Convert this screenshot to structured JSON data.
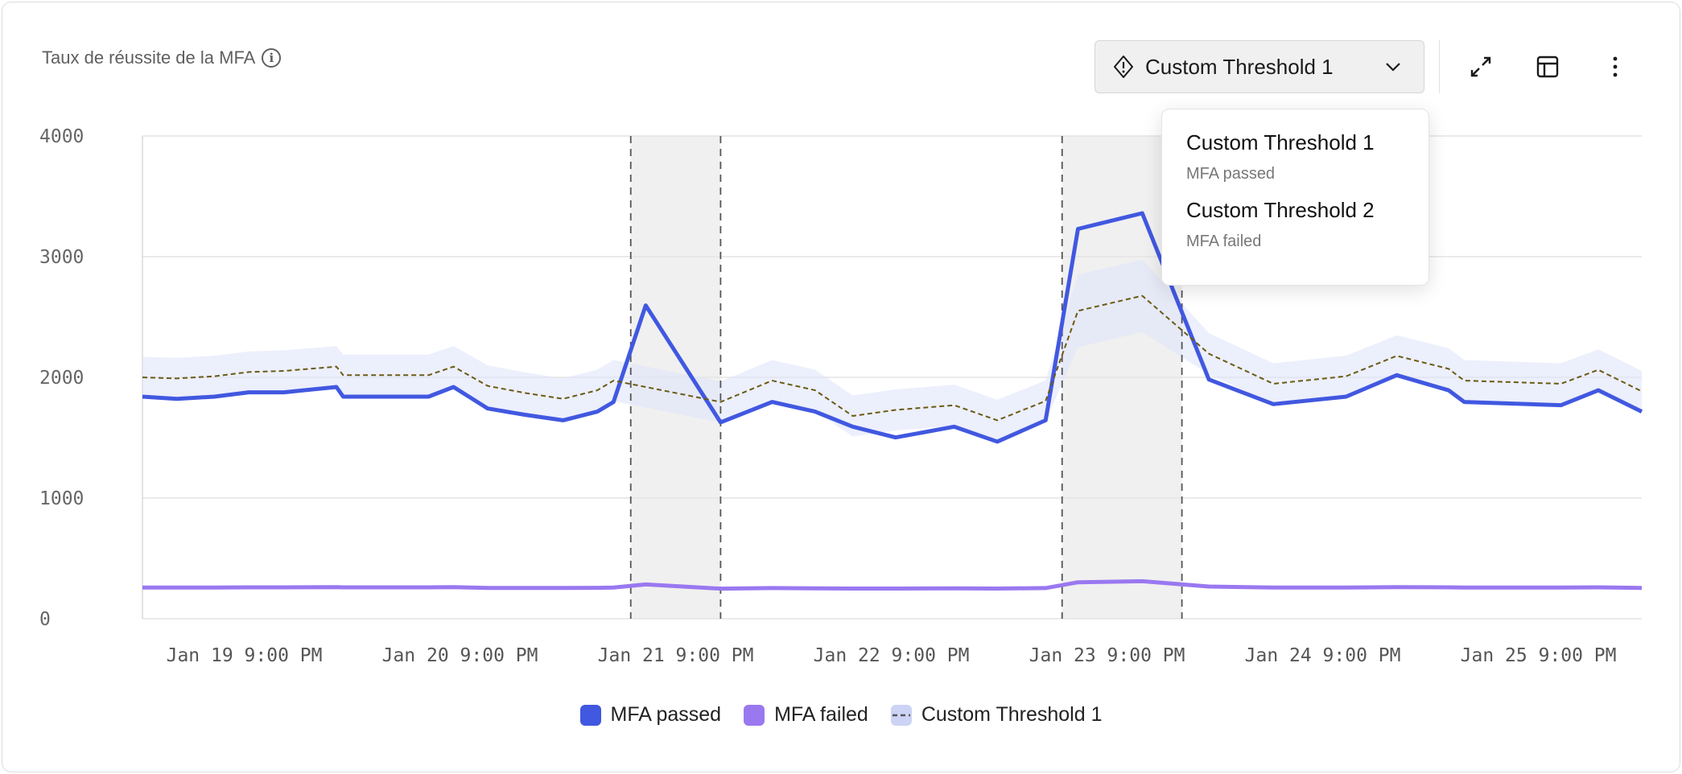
{
  "header": {
    "title": "Taux de réussite de la MFA",
    "info_icon": "info-icon",
    "threshold_select": "Custom Threshold 1",
    "icons": [
      "warning-diamond-icon",
      "chevron-down-icon",
      "expand-icon",
      "table-icon",
      "more-vertical-icon"
    ]
  },
  "dropdown": {
    "items": [
      {
        "label": "Custom Threshold 1",
        "sub": "MFA passed"
      },
      {
        "label": "Custom Threshold 2",
        "sub": "MFA failed"
      }
    ]
  },
  "legend": {
    "items": [
      {
        "label": "MFA passed",
        "color": "#4158e0"
      },
      {
        "label": "MFA failed",
        "color": "#9a78f0"
      },
      {
        "label": "Custom Threshold 1",
        "color": "#ccd3f5"
      }
    ]
  },
  "chart_data": {
    "type": "line",
    "title": "Taux de réussite de la MFA",
    "ylim": [
      0,
      4000
    ],
    "xlim": [
      "Jan 19 09:40",
      "Jan 26 08:30"
    ],
    "grid": true,
    "legend_position": "bottom",
    "y_ticks": [
      "4000",
      "3000",
      "2000",
      "1000",
      "0"
    ],
    "x_ticks": [
      {
        "at": "Jan 19 21:00",
        "label": "Jan 19 9:00 PM"
      },
      {
        "at": "Jan 20 21:00",
        "label": "Jan 20 9:00 PM"
      },
      {
        "at": "Jan 21 21:00",
        "label": "Jan 21 9:00 PM"
      },
      {
        "at": "Jan 22 21:00",
        "label": "Jan 22 9:00 PM"
      },
      {
        "at": "Jan 23 21:00",
        "label": "Jan 23 9:00 PM"
      },
      {
        "at": "Jan 24 21:00",
        "label": "Jan 24 9:00 PM"
      },
      {
        "at": "Jan 25 21:00",
        "label": "Jan 25 9:00 PM"
      }
    ],
    "highlight_ranges": [
      [
        "Jan 21 16:00",
        "Jan 22 02:00"
      ],
      [
        "Jan 23 16:00",
        "Jan 24 05:20"
      ]
    ],
    "x": [
      "Jan 19 09:40",
      "Jan 19 13:30",
      "Jan 19 17:40",
      "Jan 19 21:30",
      "Jan 20 01:25",
      "Jan 20 07:15",
      "Jan 20 08:00",
      "Jan 20 17:30",
      "Jan 20 20:17",
      "Jan 21 00:05",
      "Jan 21 04:17",
      "Jan 21 08:28",
      "Jan 21 12:17",
      "Jan 21 14:05",
      "Jan 21 17:40",
      "Jan 22 02:00",
      "Jan 22 07:44",
      "Jan 22 12:31",
      "Jan 22 16:42",
      "Jan 22 21:28",
      "Jan 23 04:00",
      "Jan 23 08:47",
      "Jan 23 14:10",
      "Jan 23 17:46",
      "Jan 24 00:55",
      "Jan 24 08:20",
      "Jan 24 15:30",
      "Jan 24 23:36",
      "Jan 25 05:14",
      "Jan 25 11:00",
      "Jan 25 12:45",
      "Jan 25 23:30",
      "Jan 26 03:40",
      "Jan 26 08:30"
    ],
    "series": [
      {
        "name": "MFA passed",
        "color": "#4158e0",
        "values": [
          1840,
          1822,
          1840,
          1876,
          1876,
          1920,
          1840,
          1840,
          1920,
          1742,
          1689,
          1644,
          1716,
          1796,
          2596,
          1627,
          1796,
          1716,
          1591,
          1502,
          1591,
          1467,
          1644,
          3230,
          3360,
          1982,
          1778,
          1840,
          2018,
          1893,
          1796,
          1769,
          1893,
          1716
        ]
      },
      {
        "name": "MFA failed",
        "color": "#9a78f0",
        "values": [
          258,
          258,
          258,
          260,
          260,
          262,
          260,
          260,
          262,
          255,
          255,
          255,
          256,
          258,
          284,
          249,
          254,
          252,
          250,
          250,
          252,
          250,
          254,
          302,
          311,
          267,
          258,
          258,
          262,
          260,
          258,
          258,
          260,
          255
        ]
      },
      {
        "name": "Custom Threshold 1",
        "color": "#6b5a12",
        "style": "dashed",
        "values": [
          2000,
          1991,
          2009,
          2044,
          2053,
          2089,
          2018,
          2018,
          2089,
          1929,
          1870,
          1822,
          1893,
          1973,
          1920,
          1796,
          1973,
          1893,
          1680,
          1730,
          1769,
          1644,
          1804,
          2551,
          2676,
          2196,
          1947,
          2009,
          2178,
          2071,
          1973,
          1947,
          2062,
          1884
        ]
      }
    ]
  }
}
